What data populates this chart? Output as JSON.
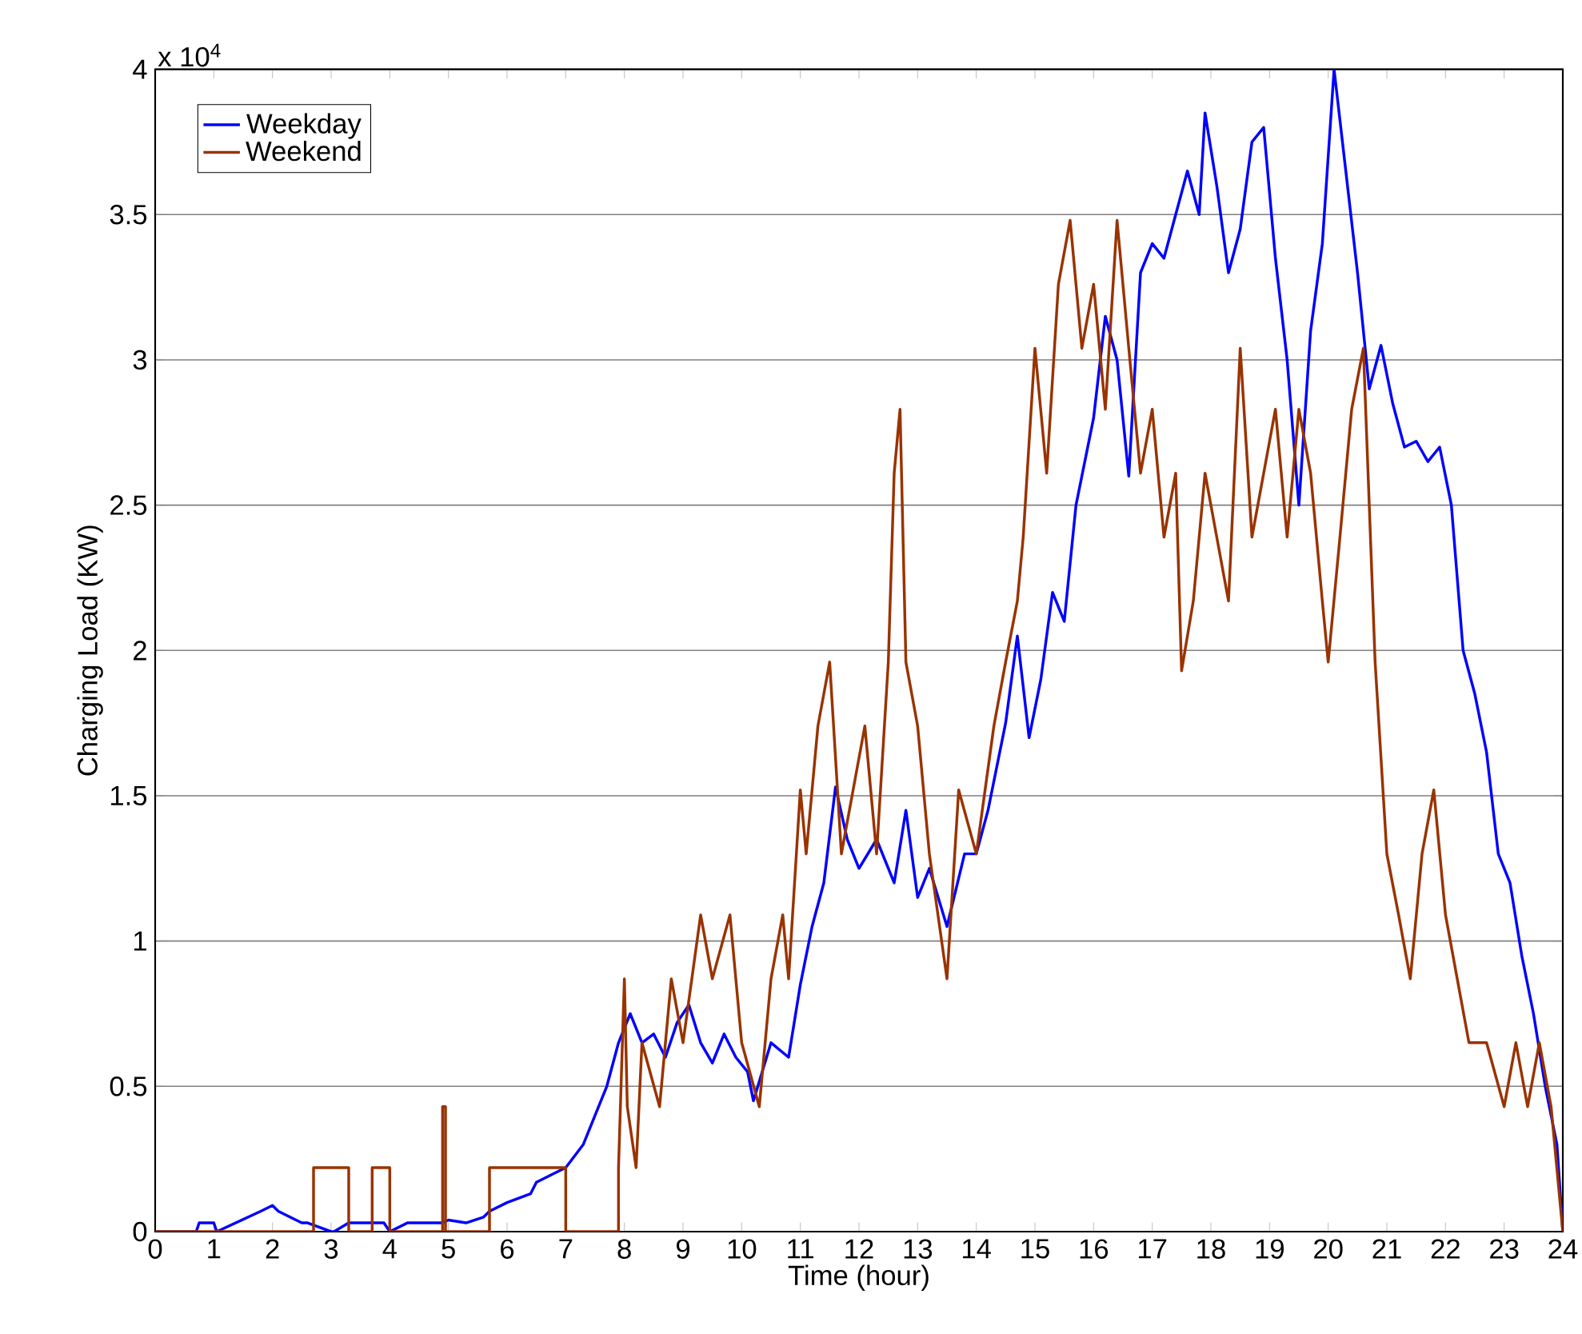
{
  "chart_data": {
    "type": "line",
    "xlabel": "Time (hour)",
    "ylabel": "Charging Load (KW)",
    "annotations": [
      "x 10$^{4}$"
    ],
    "xlim": [
      0,
      24
    ],
    "xticks": [
      0,
      1,
      2,
      3,
      4,
      5,
      6,
      7,
      8,
      9,
      10,
      11,
      12,
      13,
      14,
      15,
      16,
      17,
      18,
      19,
      20,
      21,
      22,
      23,
      24
    ],
    "ylim": [
      0,
      4
    ],
    "yticks": [
      0,
      0.5,
      1,
      1.5,
      2,
      2.5,
      3,
      3.5,
      4
    ],
    "grid": "y",
    "legend": "top left",
    "marker": "none",
    "line_style": "solid",
    "series": [
      {
        "name": "Weekday",
        "color": "#0000ff",
        "x": [
          0,
          0.7,
          0.75,
          1.0,
          1.05,
          1.8,
          2.0,
          2.1,
          2.5,
          2.6,
          3.0,
          3.05,
          3.3,
          3.9,
          4.0,
          4.3,
          4.9,
          5.0,
          5.3,
          5.6,
          5.7,
          6.0,
          6.4,
          6.5,
          6.8,
          7.0,
          7.3,
          7.5,
          7.7,
          7.9,
          8.1,
          8.3,
          8.5,
          8.7,
          8.9,
          9.1,
          9.3,
          9.5,
          9.7,
          9.9,
          10.1,
          10.2,
          10.5,
          10.8,
          11.0,
          11.2,
          11.4,
          11.6,
          11.8,
          12.0,
          12.3,
          12.6,
          12.8,
          13.0,
          13.2,
          13.5,
          13.8,
          14.0,
          14.2,
          14.5,
          14.7,
          14.9,
          15.1,
          15.3,
          15.5,
          15.7,
          16.0,
          16.2,
          16.4,
          16.6,
          16.8,
          17.0,
          17.2,
          17.4,
          17.6,
          17.8,
          17.9,
          18.1,
          18.3,
          18.5,
          18.7,
          18.9,
          19.1,
          19.3,
          19.5,
          19.7,
          19.9,
          20.1,
          20.3,
          20.5,
          20.7,
          20.9,
          21.1,
          21.3,
          21.5,
          21.7,
          21.9,
          22.1,
          22.3,
          22.5,
          22.7,
          22.9,
          23.1,
          23.3,
          23.5,
          23.7,
          23.9,
          24
        ],
        "values": [
          0,
          0,
          0.03,
          0.03,
          0,
          0.07,
          0.09,
          0.07,
          0.03,
          0.03,
          0,
          0,
          0.03,
          0.03,
          0,
          0.03,
          0.03,
          0.04,
          0.03,
          0.05,
          0.07,
          0.1,
          0.13,
          0.17,
          0.2,
          0.22,
          0.3,
          0.4,
          0.5,
          0.65,
          0.75,
          0.65,
          0.68,
          0.6,
          0.72,
          0.78,
          0.65,
          0.58,
          0.68,
          0.6,
          0.55,
          0.45,
          0.65,
          0.6,
          0.85,
          1.05,
          1.2,
          1.53,
          1.35,
          1.25,
          1.35,
          1.2,
          1.45,
          1.15,
          1.25,
          1.05,
          1.3,
          1.3,
          1.45,
          1.75,
          2.05,
          1.7,
          1.9,
          2.2,
          2.1,
          2.5,
          2.8,
          3.15,
          3.0,
          2.6,
          3.3,
          3.4,
          3.35,
          3.5,
          3.65,
          3.5,
          3.85,
          3.6,
          3.3,
          3.45,
          3.75,
          3.8,
          3.35,
          3.0,
          2.5,
          3.1,
          3.4,
          4.0,
          3.65,
          3.3,
          2.9,
          3.05,
          2.85,
          2.7,
          2.72,
          2.65,
          2.7,
          2.5,
          2.0,
          1.85,
          1.65,
          1.3,
          1.2,
          0.95,
          0.75,
          0.5,
          0.3,
          0
        ]
      },
      {
        "name": "Weekend",
        "color": "#993300",
        "x": [
          0,
          2.7,
          2.7,
          3.3,
          3.3,
          3.7,
          3.7,
          4.0,
          4.0,
          4.9,
          4.9,
          4.95,
          4.95,
          5.7,
          5.7,
          7.0,
          7.0,
          7.9,
          7.9,
          8.0,
          8.05,
          8.2,
          8.3,
          8.6,
          8.8,
          9.0,
          9.3,
          9.5,
          9.8,
          10.0,
          10.3,
          10.5,
          10.7,
          10.8,
          11.0,
          11.1,
          11.3,
          11.5,
          11.7,
          11.9,
          12.1,
          12.3,
          12.5,
          12.6,
          12.7,
          12.8,
          13.0,
          13.2,
          13.5,
          13.7,
          14.0,
          14.3,
          14.5,
          14.7,
          14.8,
          15.0,
          15.2,
          15.4,
          15.6,
          15.8,
          16.0,
          16.2,
          16.4,
          16.6,
          16.8,
          17.0,
          17.2,
          17.4,
          17.5,
          17.7,
          17.9,
          18.1,
          18.3,
          18.5,
          18.7,
          18.9,
          19.1,
          19.3,
          19.5,
          19.7,
          19.9,
          20.0,
          20.2,
          20.4,
          20.6,
          20.8,
          21.0,
          21.2,
          21.4,
          21.6,
          21.8,
          22.0,
          22.2,
          22.4,
          22.7,
          23.0,
          23.2,
          23.4,
          23.6,
          23.8,
          24
        ],
        "values": [
          0,
          0,
          0.22,
          0.22,
          0,
          0,
          0.22,
          0.22,
          0,
          0,
          0.43,
          0.43,
          0,
          0,
          0.22,
          0.22,
          0,
          0,
          0.22,
          0.87,
          0.43,
          0.22,
          0.65,
          0.43,
          0.87,
          0.65,
          1.09,
          0.87,
          1.09,
          0.65,
          0.43,
          0.87,
          1.09,
          0.87,
          1.52,
          1.3,
          1.74,
          1.96,
          1.3,
          1.52,
          1.74,
          1.3,
          1.96,
          2.61,
          2.83,
          1.96,
          1.74,
          1.3,
          0.87,
          1.52,
          1.3,
          1.74,
          1.96,
          2.17,
          2.39,
          3.04,
          2.61,
          3.26,
          3.48,
          3.04,
          3.26,
          2.83,
          3.48,
          3.04,
          2.61,
          2.83,
          2.39,
          2.61,
          1.93,
          2.17,
          2.61,
          2.39,
          2.17,
          3.04,
          2.39,
          2.61,
          2.83,
          2.39,
          2.83,
          2.61,
          2.17,
          1.96,
          2.39,
          2.83,
          3.04,
          1.96,
          1.3,
          1.09,
          0.87,
          1.3,
          1.52,
          1.09,
          0.87,
          0.65,
          0.65,
          0.43,
          0.65,
          0.43,
          0.65,
          0.43,
          0
        ]
      }
    ]
  }
}
